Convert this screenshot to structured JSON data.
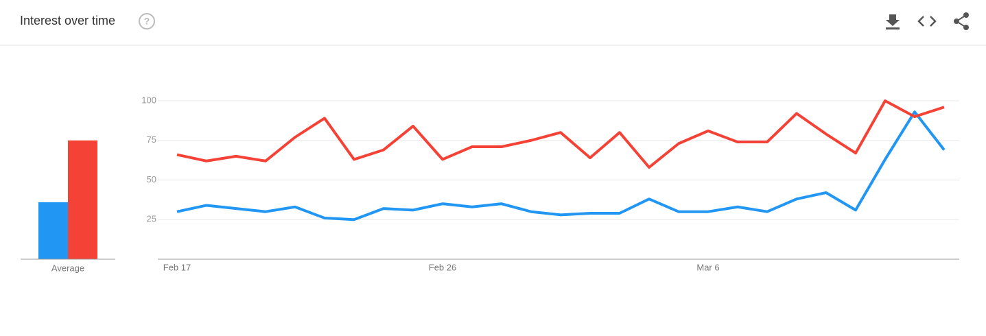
{
  "header": {
    "title": "Interest over time"
  },
  "chart_data": [
    {
      "type": "bar",
      "categories": [
        "Average"
      ],
      "series": [
        {
          "color": "#2196f3",
          "values": [
            36
          ]
        },
        {
          "color": "#f44336",
          "values": [
            75
          ]
        }
      ],
      "ylim": [
        0,
        100
      ]
    },
    {
      "type": "line",
      "categories": [
        "Feb 17",
        null,
        null,
        null,
        null,
        null,
        null,
        null,
        null,
        "Feb 26",
        null,
        null,
        null,
        null,
        null,
        null,
        null,
        null,
        "Mar 6",
        null,
        null,
        null,
        null,
        null,
        null,
        null,
        null
      ],
      "series": [
        {
          "color": "#2196f3",
          "values": [
            30,
            34,
            32,
            30,
            33,
            26,
            25,
            32,
            31,
            35,
            33,
            35,
            30,
            28,
            29,
            29,
            38,
            30,
            30,
            33,
            30,
            38,
            42,
            31,
            63,
            93,
            69
          ]
        },
        {
          "color": "#f44336",
          "values": [
            66,
            62,
            65,
            62,
            77,
            89,
            63,
            69,
            84,
            63,
            71,
            71,
            75,
            80,
            64,
            80,
            58,
            73,
            81,
            74,
            74,
            92,
            79,
            67,
            100,
            90,
            96
          ]
        }
      ],
      "ylim": [
        0,
        100
      ],
      "yticks": [
        25,
        50,
        75,
        100
      ],
      "grid": true
    }
  ]
}
